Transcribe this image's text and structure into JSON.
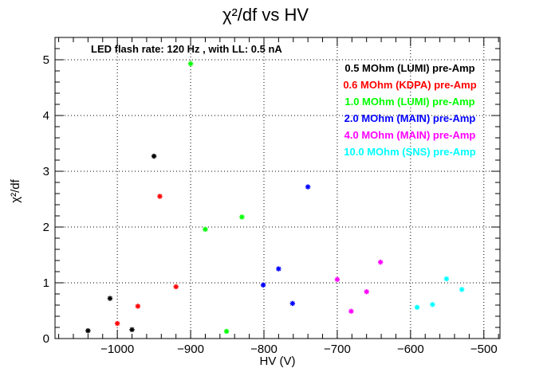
{
  "chart_data": {
    "type": "scatter",
    "title": "χ²/df vs HV",
    "xlabel": "HV (V)",
    "ylabel": "χ²/df",
    "xlim": [
      -1085,
      -478
    ],
    "ylim": [
      0,
      5.4
    ],
    "grid": true,
    "x_ticks": [
      -1000,
      -900,
      -800,
      -700,
      -600,
      -500
    ],
    "x_tick_labels": [
      "−1000",
      "−900",
      "−800",
      "−700",
      "−600",
      "−500"
    ],
    "y_ticks": [
      0,
      1,
      2,
      3,
      4,
      5
    ],
    "y_tick_labels": [
      "0",
      "1",
      "2",
      "3",
      "4",
      "5"
    ],
    "annotation": "LED flash rate: 120 Hz , with LL: 0.5 nA",
    "legend_placement": "top-right",
    "series": [
      {
        "name": "0.5 MOhm (LUMI) pre-Amp",
        "color": "#000000",
        "x": [
          -1040,
          -1010,
          -980,
          -950
        ],
        "y": [
          0.14,
          0.72,
          0.16,
          3.27
        ]
      },
      {
        "name": "0.6 MOhm (KDPA) pre-Amp",
        "color": "#ff0000",
        "x": [
          -1000,
          -972,
          -942,
          -920
        ],
        "y": [
          0.27,
          0.58,
          2.55,
          0.93
        ]
      },
      {
        "name": "1.0 MOhm (LUMI) pre-Amp",
        "color": "#00ff00",
        "x": [
          -900,
          -880,
          -851,
          -830
        ],
        "y": [
          4.93,
          1.96,
          0.13,
          2.18
        ]
      },
      {
        "name": "2.0 MOhm (MAIN) pre-Amp",
        "color": "#0000ff",
        "x": [
          -801,
          -780,
          -761,
          -740
        ],
        "y": [
          0.96,
          1.25,
          0.63,
          2.72
        ]
      },
      {
        "name": "4.0 MOhm (MAIN) pre-Amp",
        "color": "#ff00ff",
        "x": [
          -700,
          -681,
          -660,
          -641
        ],
        "y": [
          1.06,
          0.49,
          0.84,
          1.37
        ]
      },
      {
        "name": "10.0 MOhm (SNS) pre-Amp",
        "color": "#00ffff",
        "x": [
          -591,
          -570,
          -551,
          -530
        ],
        "y": [
          0.56,
          0.61,
          1.07,
          0.88
        ]
      }
    ]
  }
}
